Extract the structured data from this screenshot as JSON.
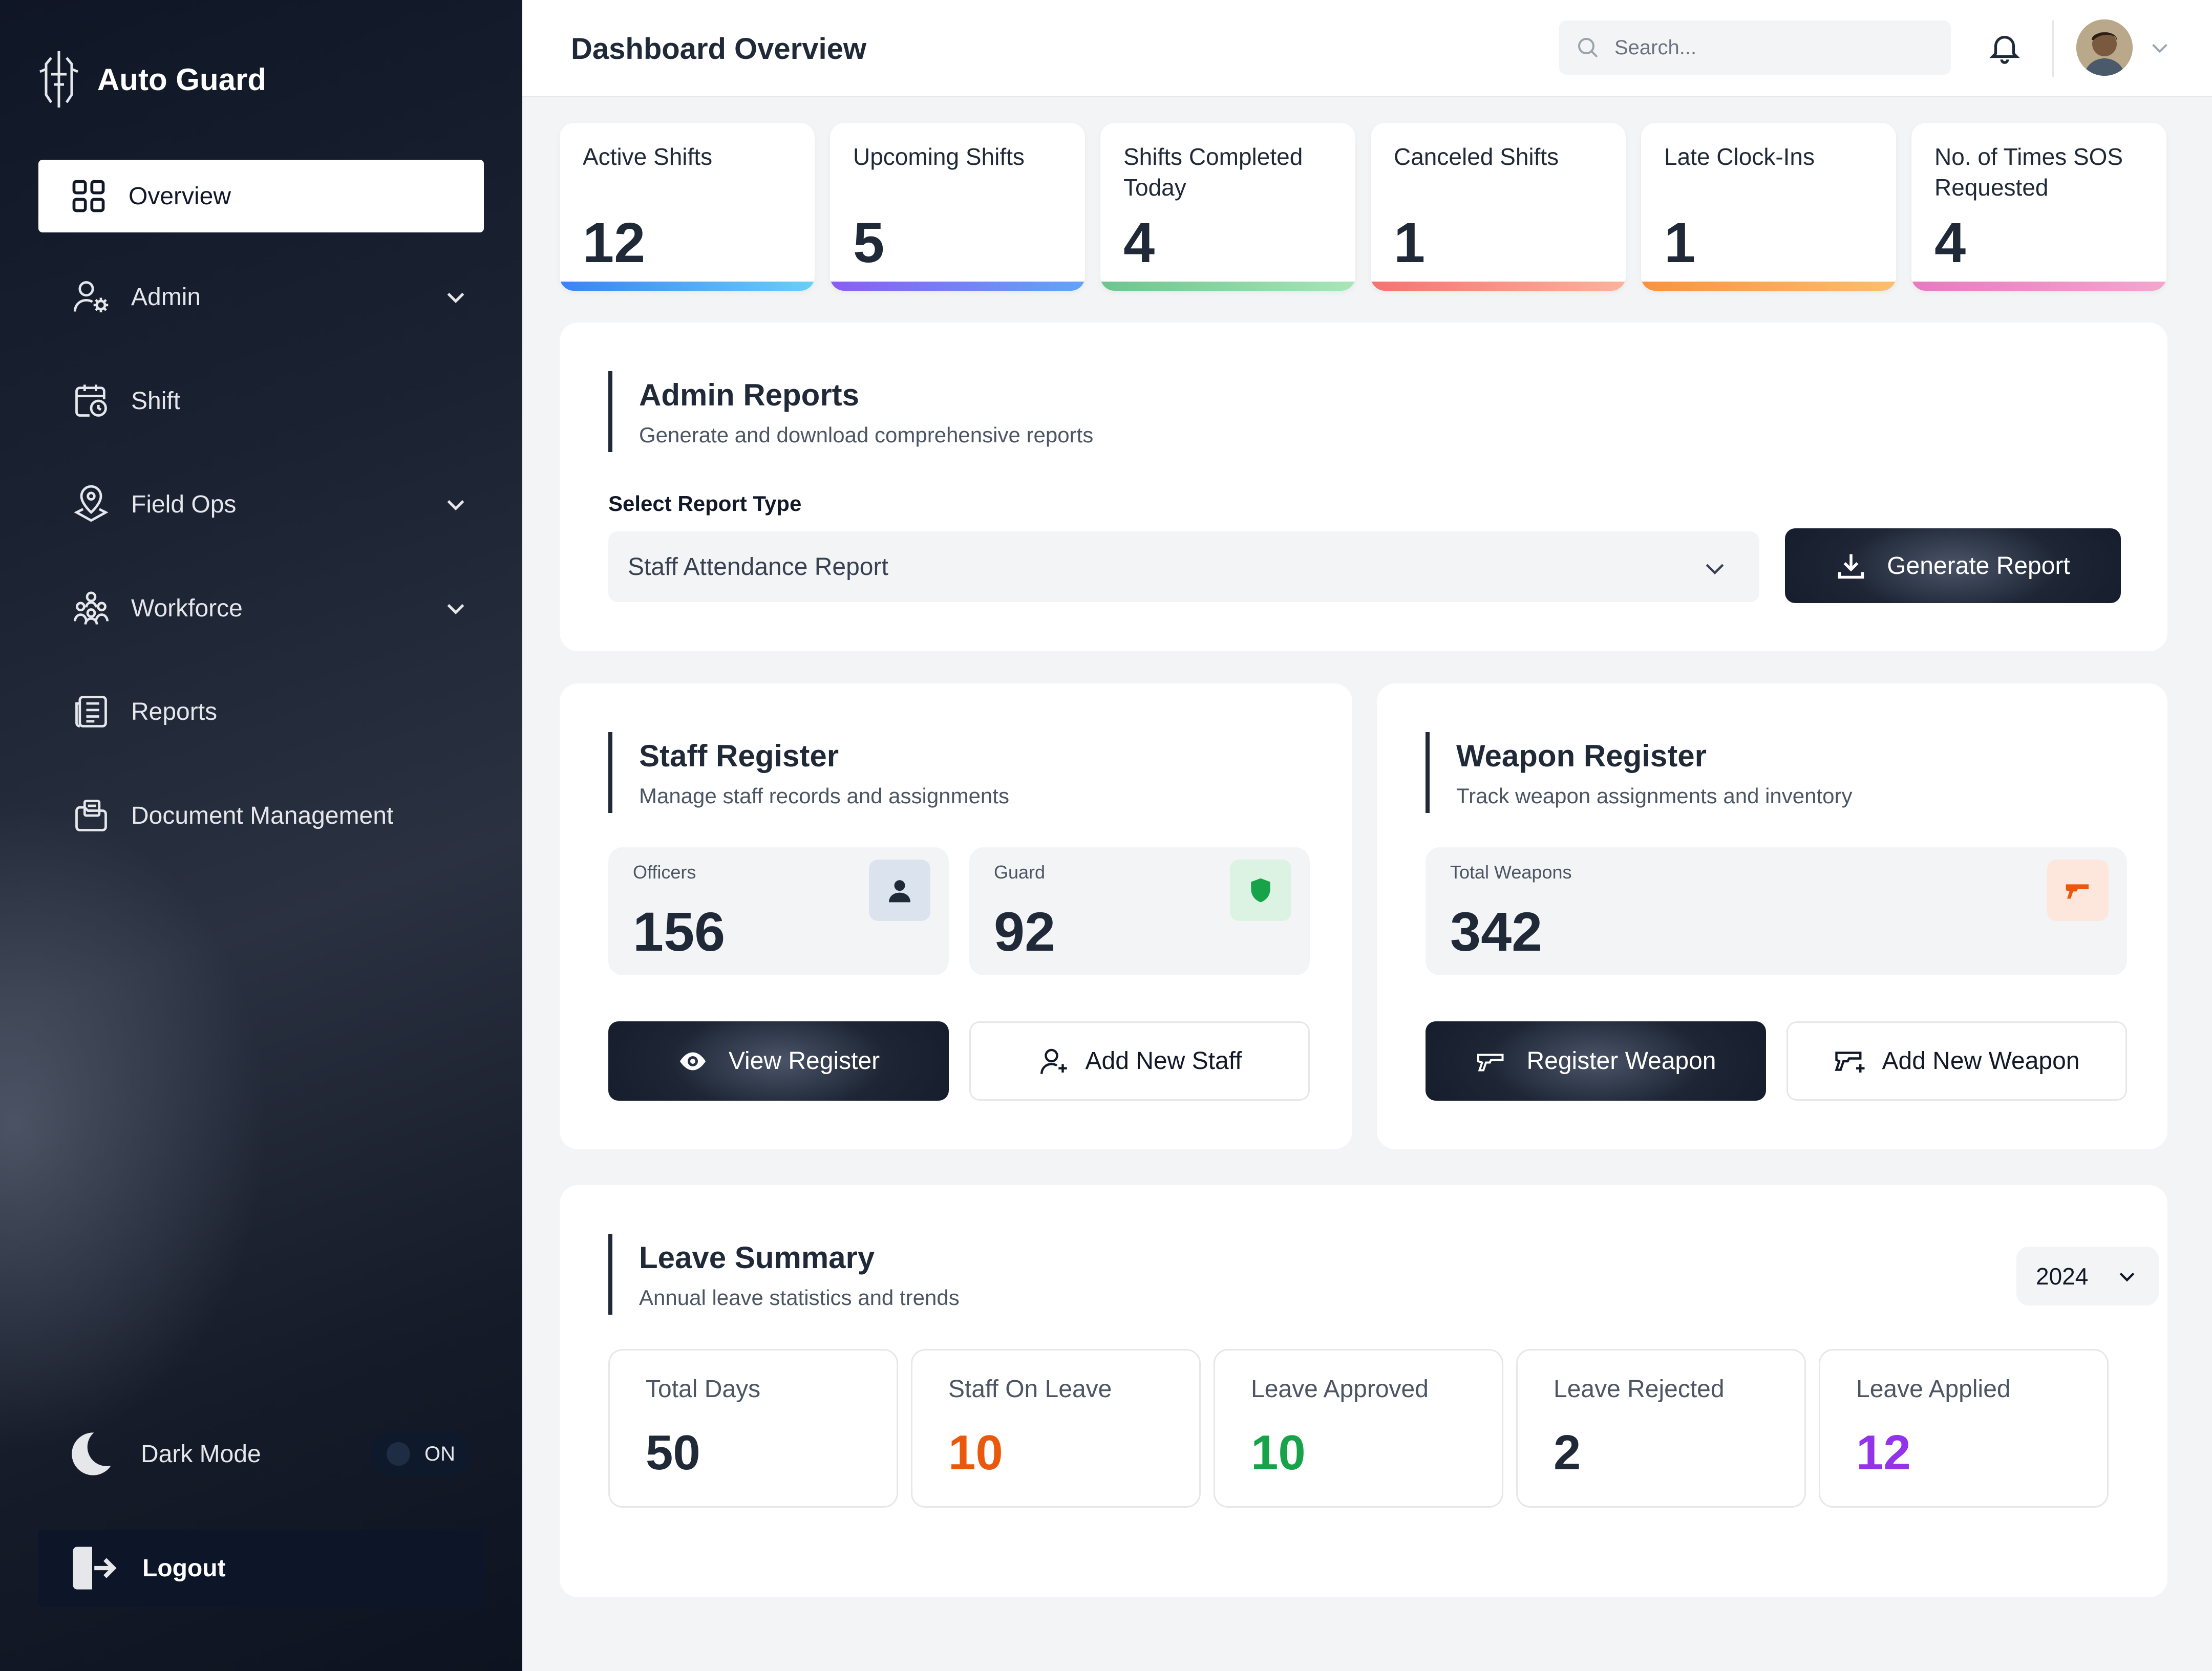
{
  "app": {
    "name": "Auto Guard"
  },
  "sidebar": {
    "items": [
      {
        "label": "Overview",
        "icon": "grid-icon",
        "active": true
      },
      {
        "label": "Admin",
        "icon": "user-gear-icon",
        "expandable": true
      },
      {
        "label": "Shift",
        "icon": "calendar-clock-icon"
      },
      {
        "label": "Field Ops",
        "icon": "map-pin-icon",
        "expandable": true
      },
      {
        "label": "Workforce",
        "icon": "team-icon",
        "expandable": true
      },
      {
        "label": "Reports",
        "icon": "report-icon"
      },
      {
        "label": "Document Management",
        "icon": "folder-document-icon"
      }
    ],
    "dark_mode": {
      "label": "Dark Mode",
      "toggle": "ON"
    },
    "logout": "Logout"
  },
  "header": {
    "title": "Dashboard Overview",
    "search": {
      "placeholder": "Search...",
      "value": ""
    }
  },
  "stats": [
    {
      "label": "Active Shifts",
      "value": "12",
      "color": "#5aa9f5"
    },
    {
      "label": "Upcoming Shifts",
      "value": "5",
      "color": "#7c8cf0"
    },
    {
      "label": "Shifts Completed Today",
      "value": "4",
      "color": "#7fd0a0"
    },
    {
      "label": "Canceled Shifts",
      "value": "1",
      "color": "#f59a8e"
    },
    {
      "label": "Late Clock-Ins",
      "value": "1",
      "color": "#f5ae6a"
    },
    {
      "label": "No. of Times SOS Requested",
      "value": "4",
      "color": "#ef9ccc"
    }
  ],
  "admin_reports": {
    "title": "Admin Reports",
    "subtitle": "Generate and download comprehensive reports",
    "select_label": "Select Report Type",
    "selected": "Staff Attendance Report",
    "button": "Generate Report"
  },
  "staff_register": {
    "title": "Staff Register",
    "subtitle": "Manage staff records and assignments",
    "officers": {
      "label": "Officers",
      "value": "156"
    },
    "guard": {
      "label": "Guard",
      "value": "92"
    },
    "view_button": "View Register",
    "add_button": "Add New Staff"
  },
  "weapon_register": {
    "title": "Weapon Register",
    "subtitle": "Track weapon assignments and inventory",
    "total": {
      "label": "Total Weapons",
      "value": "342"
    },
    "register_button": "Register Weapon",
    "add_button": "Add New Weapon"
  },
  "leave_summary": {
    "title": "Leave Summary",
    "subtitle": "Annual leave statistics and trends",
    "year": "2024",
    "cards": [
      {
        "label": "Total Days",
        "value": "50",
        "color": "#1f2937"
      },
      {
        "label": "Staff On Leave",
        "value": "10",
        "color": "#ea580c"
      },
      {
        "label": "Leave Approved",
        "value": "10",
        "color": "#16a34a"
      },
      {
        "label": "Leave Rejected",
        "value": "2",
        "color": "#1f2937"
      },
      {
        "label": "Leave Applied",
        "value": "12",
        "color": "#9333ea"
      }
    ]
  }
}
